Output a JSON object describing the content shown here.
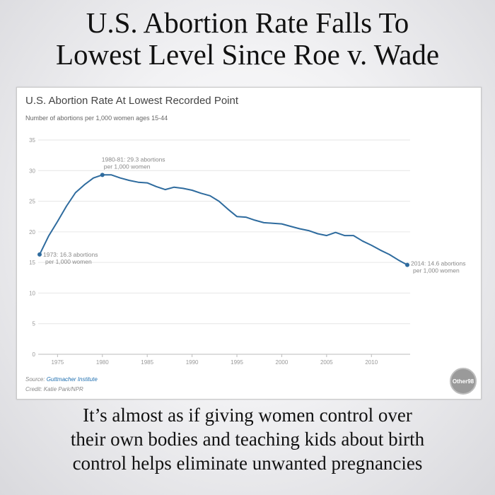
{
  "headline": {
    "line1": "U.S. Abortion Rate Falls To",
    "line2": "Lowest Level Since Roe v. Wade"
  },
  "chart_card": {
    "source_prefix": "Source: ",
    "source_name": "Guttmacher Institute",
    "credit": "Credit: Katie Park/NPR",
    "watermark": "Other98"
  },
  "caption": {
    "line1": "It’s almost as if giving women control over",
    "line2": "their own bodies and teaching kids about birth",
    "line3": "control helps eliminate unwanted pregnancies"
  },
  "chart_data": {
    "type": "line",
    "title": "U.S. Abortion Rate At Lowest Recorded Point",
    "subtitle": "Number of abortions per 1,000 women ages 15-44",
    "xlabel": "",
    "ylabel": "",
    "xlim": [
      1973,
      2014
    ],
    "ylim": [
      0,
      35
    ],
    "xticks": [
      1975,
      1980,
      1985,
      1990,
      1995,
      2000,
      2005,
      2010
    ],
    "yticks": [
      0,
      5,
      10,
      15,
      20,
      25,
      30,
      35
    ],
    "grid": "horizontal",
    "line_color": "#2e6b9e",
    "series": [
      {
        "x": [
          1973,
          1974,
          1975,
          1976,
          1977,
          1978,
          1979,
          1980,
          1981,
          1982,
          1983,
          1984,
          1985,
          1986,
          1987,
          1988,
          1989,
          1990,
          1991,
          1992,
          1993,
          1994,
          1995,
          1996,
          1997,
          1998,
          1999,
          2000,
          2001,
          2002,
          2003,
          2004,
          2005,
          2006,
          2007,
          2008,
          2009,
          2010,
          2011,
          2012,
          2013,
          2014
        ],
        "y": [
          16.3,
          19.3,
          21.7,
          24.2,
          26.4,
          27.7,
          28.8,
          29.3,
          29.3,
          28.8,
          28.4,
          28.1,
          28.0,
          27.4,
          26.9,
          27.3,
          27.1,
          26.8,
          26.3,
          25.9,
          25.0,
          23.7,
          22.5,
          22.4,
          21.9,
          21.5,
          21.4,
          21.3,
          20.9,
          20.5,
          20.2,
          19.7,
          19.4,
          19.9,
          19.4,
          19.4,
          18.5,
          17.8,
          17.0,
          16.3,
          15.4,
          14.6
        ]
      }
    ],
    "annotations": [
      {
        "x": 1973,
        "y": 16.3,
        "line1": "1973: 16.3 abortions",
        "line2": "per 1,000 women"
      },
      {
        "x": 1980,
        "y": 29.3,
        "line1": "1980-81: 29.3 abortions",
        "line2": "per 1,000 women"
      },
      {
        "x": 2014,
        "y": 14.6,
        "line1": "2014: 14.6 abortions",
        "line2": "per 1,000 women"
      }
    ]
  }
}
